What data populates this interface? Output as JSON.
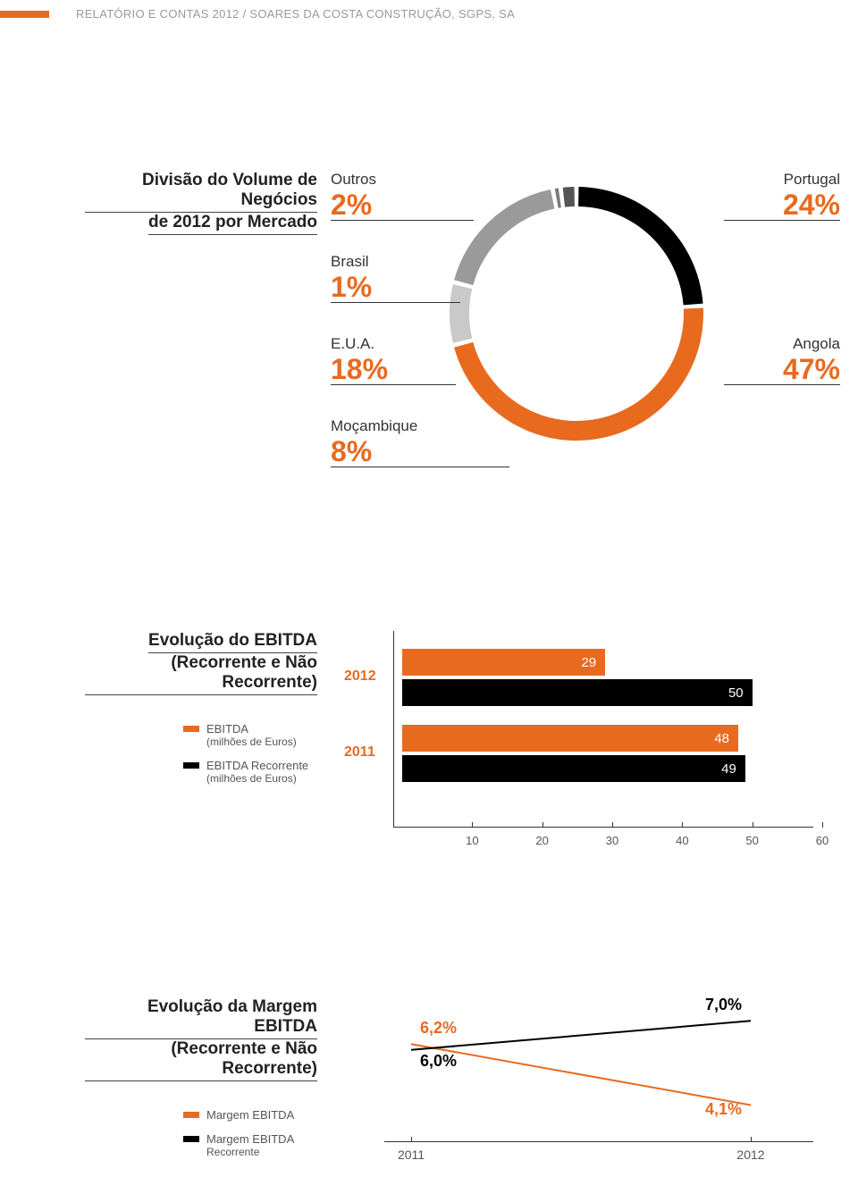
{
  "header": {
    "text": "RELATÓRIO E CONTAS 2012 / SOARES DA COSTA CONSTRUÇÃO, SGPS, SA"
  },
  "donut": {
    "title_line1": "Divisão do Volume de Negócios",
    "title_line2": "de 2012 por Mercado",
    "slices": [
      {
        "label": "Portugal",
        "value": 24,
        "display": "24%",
        "color": "#000000"
      },
      {
        "label": "Angola",
        "value": 47,
        "display": "47%",
        "color": "#e86a1f"
      },
      {
        "label": "Moçambique",
        "value": 8,
        "display": "8%",
        "color": "#c9c9c9"
      },
      {
        "label": "E.U.A.",
        "value": 18,
        "display": "18%",
        "color": "#9a9a9a"
      },
      {
        "label": "Brasil",
        "value": 1,
        "display": "1%",
        "color": "#7a7a7a"
      },
      {
        "label": "Outros",
        "value": 2,
        "display": "2%",
        "color": "#555555"
      }
    ],
    "ring_outer_r": 142,
    "ring_inner_r": 120,
    "gap_deg": 2,
    "background_color": "#ffffff"
  },
  "barchart": {
    "title_line1": "Evolução do EBITDA",
    "title_line2": "(Recorrente e Não Recorrente)",
    "legend": [
      {
        "label": "EBITDA",
        "sub": "(milhões de Euros)",
        "color": "#e86a1f"
      },
      {
        "label": "EBITDA Recorrente",
        "sub": "(milhões de Euros)",
        "color": "#000000"
      }
    ],
    "years": [
      {
        "year": "2012",
        "ebitda": 29,
        "recorrente": 50
      },
      {
        "year": "2011",
        "ebitda": 48,
        "recorrente": 49
      }
    ],
    "xmax": 60,
    "xticks": [
      10,
      20,
      30,
      40,
      50,
      60
    ],
    "bar_colors": {
      "ebitda": "#e86a1f",
      "recorrente": "#000000"
    },
    "value_text_color": "#ffffff",
    "axis_color": "#333333"
  },
  "linechart": {
    "title_line1": "Evolução da Margem EBITDA",
    "title_line2": "(Recorrente e Não Recorrente)",
    "legend": [
      {
        "label": "Margem EBITDA",
        "color": "#e86a1f"
      },
      {
        "label": "Margem EBITDA Recorrente",
        "sub": "",
        "color": "#000000"
      }
    ],
    "legend2_line1": "Margem EBITDA",
    "legend2_line2": "Recorrente",
    "x_categories": [
      "2011",
      "2012"
    ],
    "series": [
      {
        "name": "Margem EBITDA",
        "color": "#e86a1f",
        "points": [
          {
            "x": "2011",
            "y": 6.2,
            "label": "6,2%"
          },
          {
            "x": "2012",
            "y": 4.1,
            "label": "4,1%"
          }
        ]
      },
      {
        "name": "Margem EBITDA Recorrente",
        "color": "#000000",
        "points": [
          {
            "x": "2011",
            "y": 6.0,
            "label": "6,0%"
          },
          {
            "x": "2012",
            "y": 7.0,
            "label": "7,0%"
          }
        ]
      }
    ],
    "y_min": 3.5,
    "y_max": 7.5,
    "line_width": 2,
    "value_colors": {
      "ebitda": "#e86a1f",
      "recorrente": "#000000"
    }
  }
}
